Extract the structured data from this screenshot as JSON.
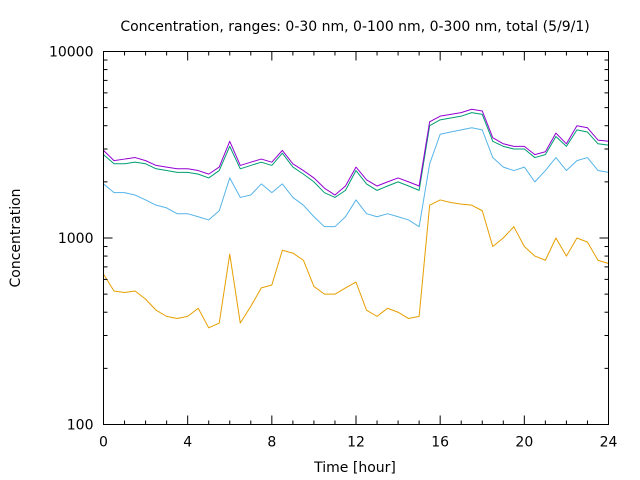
{
  "chart_data": {
    "type": "line",
    "title": "Concentration, ranges: 0-30 nm, 0-100 nm, 0-300 nm, total (5/9/1)",
    "xlabel": "Time [hour]",
    "ylabel": "Concentration",
    "xlim": [
      0,
      24
    ],
    "ylim": [
      100,
      10000
    ],
    "yscale": "log",
    "grid": false,
    "legend": "none",
    "x_ticks": [
      "0",
      "4",
      "8",
      "12",
      "16",
      "20",
      "24"
    ],
    "y_ticks": [
      "100",
      "1000",
      "10000"
    ],
    "x": [
      0,
      0.5,
      1,
      1.5,
      2,
      2.5,
      3,
      3.5,
      4,
      4.5,
      5,
      5.5,
      6,
      6.5,
      7,
      7.5,
      8,
      8.5,
      9,
      9.5,
      10,
      10.5,
      11,
      11.5,
      12,
      12.5,
      13,
      13.5,
      14,
      14.5,
      15,
      15.5,
      16,
      16.5,
      17,
      17.5,
      18,
      18.5,
      19,
      19.5,
      20,
      20.5,
      21,
      21.5,
      22,
      22.5,
      23,
      23.5,
      24
    ],
    "series": [
      {
        "color": "#e69f00",
        "values": [
          640,
          520,
          510,
          520,
          470,
          410,
          380,
          370,
          380,
          420,
          330,
          350,
          820,
          350,
          430,
          540,
          560,
          860,
          830,
          760,
          550,
          500,
          500,
          540,
          580,
          410,
          380,
          420,
          400,
          370,
          380,
          1500,
          1600,
          1550,
          1520,
          1500,
          1400,
          900,
          1000,
          1150,
          900,
          800,
          760,
          1000,
          800,
          1000,
          950,
          760,
          730
        ]
      },
      {
        "color": "#56b4e9",
        "values": [
          1950,
          1750,
          1750,
          1700,
          1600,
          1500,
          1450,
          1350,
          1350,
          1300,
          1250,
          1400,
          2100,
          1650,
          1700,
          1950,
          1750,
          1950,
          1650,
          1500,
          1300,
          1150,
          1150,
          1300,
          1600,
          1350,
          1300,
          1350,
          1300,
          1250,
          1150,
          2500,
          3600,
          3700,
          3800,
          3900,
          3800,
          2700,
          2400,
          2300,
          2400,
          2000,
          2300,
          2700,
          2300,
          2600,
          2700,
          2300,
          2250
        ]
      },
      {
        "color": "#009e73",
        "values": [
          2800,
          2500,
          2500,
          2550,
          2500,
          2350,
          2300,
          2250,
          2250,
          2200,
          2100,
          2300,
          3100,
          2350,
          2450,
          2550,
          2450,
          2850,
          2400,
          2200,
          2000,
          1750,
          1650,
          1800,
          2300,
          1950,
          1800,
          1900,
          2000,
          1900,
          1800,
          4000,
          4300,
          4400,
          4500,
          4700,
          4600,
          3300,
          3100,
          3000,
          3000,
          2700,
          2800,
          3500,
          3100,
          3800,
          3700,
          3200,
          3150
        ]
      },
      {
        "color": "#9400d3",
        "values": [
          2950,
          2600,
          2650,
          2700,
          2600,
          2450,
          2400,
          2350,
          2350,
          2300,
          2200,
          2400,
          3300,
          2450,
          2550,
          2650,
          2550,
          2950,
          2500,
          2300,
          2100,
          1850,
          1700,
          1900,
          2400,
          2050,
          1900,
          2000,
          2100,
          2000,
          1900,
          4200,
          4500,
          4600,
          4700,
          4900,
          4800,
          3450,
          3200,
          3100,
          3100,
          2800,
          2900,
          3650,
          3200,
          4000,
          3900,
          3350,
          3300
        ]
      }
    ]
  }
}
